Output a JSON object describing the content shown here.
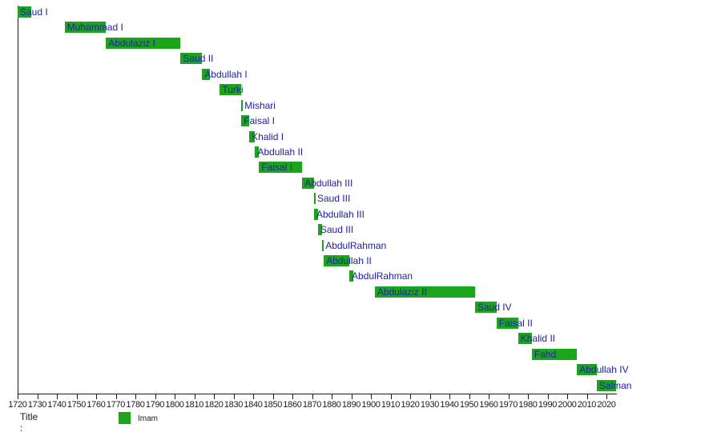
{
  "chart_data": {
    "type": "gantt",
    "title": "",
    "legend": {
      "title_label": "Title :",
      "position": "bottom-left",
      "entries": [
        {
          "label": "Imam",
          "color": "#1CA41C"
        }
      ]
    },
    "axis": {
      "orientation": "bottom",
      "start": 1720,
      "end": 2020,
      "step": 10,
      "ticks": [
        1720,
        1730,
        1740,
        1750,
        1760,
        1770,
        1780,
        1790,
        1800,
        1810,
        1820,
        1830,
        1840,
        1850,
        1860,
        1870,
        1880,
        1890,
        1900,
        1910,
        1920,
        1930,
        1940,
        1950,
        1960,
        1970,
        1980,
        1990,
        2000,
        2010,
        2020
      ],
      "grid": false
    },
    "tasks": [
      {
        "name": "Saud I",
        "start": 1720,
        "end": 1727
      },
      {
        "name": "Muhammad I",
        "start": 1744,
        "end": 1765
      },
      {
        "name": "Abdulaziz I",
        "start": 1765,
        "end": 1803
      },
      {
        "name": "Saud II",
        "start": 1803,
        "end": 1814
      },
      {
        "name": "Abdullah I",
        "start": 1814,
        "end": 1818
      },
      {
        "name": "Turki",
        "start": 1823,
        "end": 1834
      },
      {
        "name": "Mishari",
        "start": 1834,
        "end": 1834.2
      },
      {
        "name": "Faisal I",
        "start": 1834,
        "end": 1838
      },
      {
        "name": "Khalid I",
        "start": 1838,
        "end": 1841
      },
      {
        "name": "Abdullah II",
        "start": 1841,
        "end": 1843
      },
      {
        "name": "Faisal I",
        "start": 1843,
        "end": 1865
      },
      {
        "name": "Abdullah III",
        "start": 1865,
        "end": 1871
      },
      {
        "name": "Saud III",
        "start": 1871,
        "end": 1871.2
      },
      {
        "name": "Abdullah III",
        "start": 1871,
        "end": 1873
      },
      {
        "name": "Saud III",
        "start": 1873,
        "end": 1875
      },
      {
        "name": "AbdulRahman",
        "start": 1875,
        "end": 1876
      },
      {
        "name": "Abdullah II",
        "start": 1876,
        "end": 1889
      },
      {
        "name": "AbdulRahman",
        "start": 1889,
        "end": 1891
      },
      {
        "name": "Abdulaziz II",
        "start": 1902,
        "end": 1953
      },
      {
        "name": "Saud IV",
        "start": 1953,
        "end": 1964
      },
      {
        "name": "Faisal II",
        "start": 1964,
        "end": 1975
      },
      {
        "name": "Khalid II",
        "start": 1975,
        "end": 1982
      },
      {
        "name": "Fahd",
        "start": 1982,
        "end": 2005
      },
      {
        "name": "Abdullah IV",
        "start": 2005,
        "end": 2015
      },
      {
        "name": "Salman",
        "start": 2015,
        "end": 2025
      }
    ]
  },
  "colors": {
    "bar_green": "#1CA41C",
    "label_blue": "#2020B2",
    "axis_black": "#1a1a1a",
    "background": "#ffffff"
  }
}
